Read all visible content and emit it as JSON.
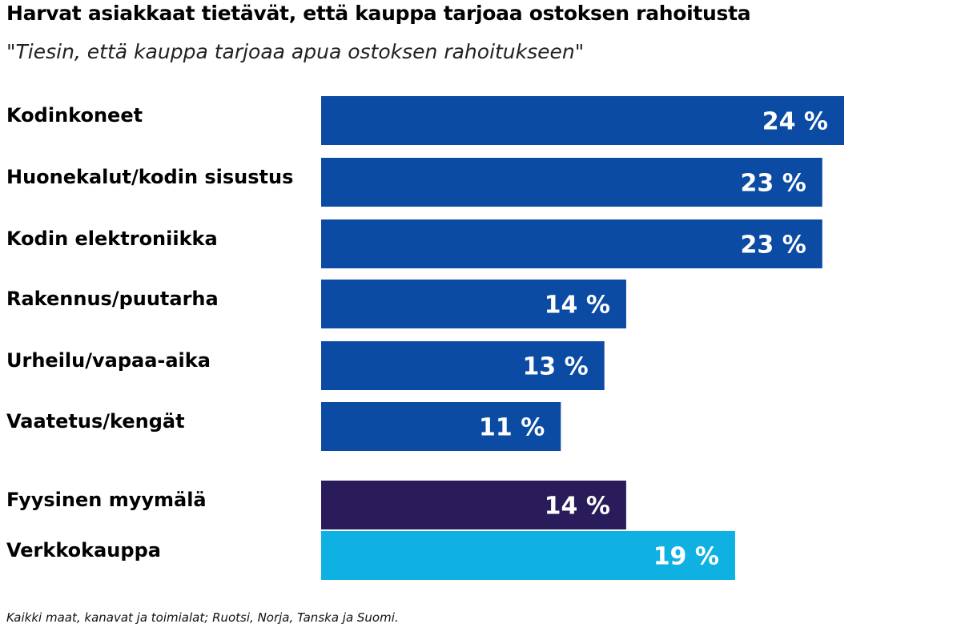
{
  "chart_data": {
    "type": "bar",
    "orientation": "horizontal",
    "title": "Harvat asiakkaat tietävät, että kauppa tarjoaa ostoksen rahoitusta",
    "subtitle": "\"Tiesin, että kauppa tarjoaa apua ostoksen rahoitukseen\"",
    "footnote": "Kaikki maat, kanavat ja toimialat; Ruotsi, Norja, Tanska ja Suomi.",
    "xlim": [
      0,
      24
    ],
    "grid": false,
    "bars": [
      {
        "category": "Kodinkoneet",
        "value": 24,
        "label": "24 %",
        "color": "#0b4ba3"
      },
      {
        "category": "Huonekalut/kodin sisustus",
        "value": 23,
        "label": "23 %",
        "color": "#0b4ba3"
      },
      {
        "category": "Kodin elektroniikka",
        "value": 23,
        "label": "23 %",
        "color": "#0b4ba3"
      },
      {
        "category": "Rakennus/puutarha",
        "value": 14,
        "label": "14 %",
        "color": "#0b4ba3"
      },
      {
        "category": "Urheilu/vapaa-aika",
        "value": 13,
        "label": "13 %",
        "color": "#0b4ba3"
      },
      {
        "category": "Vaatetus/kengät",
        "value": 11,
        "label": "11 %",
        "color": "#0b4ba3"
      },
      {
        "category": "Fyysinen myymälä",
        "value": 14,
        "label": "14 %",
        "color": "#2a1b5a"
      },
      {
        "category": "Verkkokauppa",
        "value": 19,
        "label": "19 %",
        "color": "#0fb1e3"
      }
    ]
  }
}
